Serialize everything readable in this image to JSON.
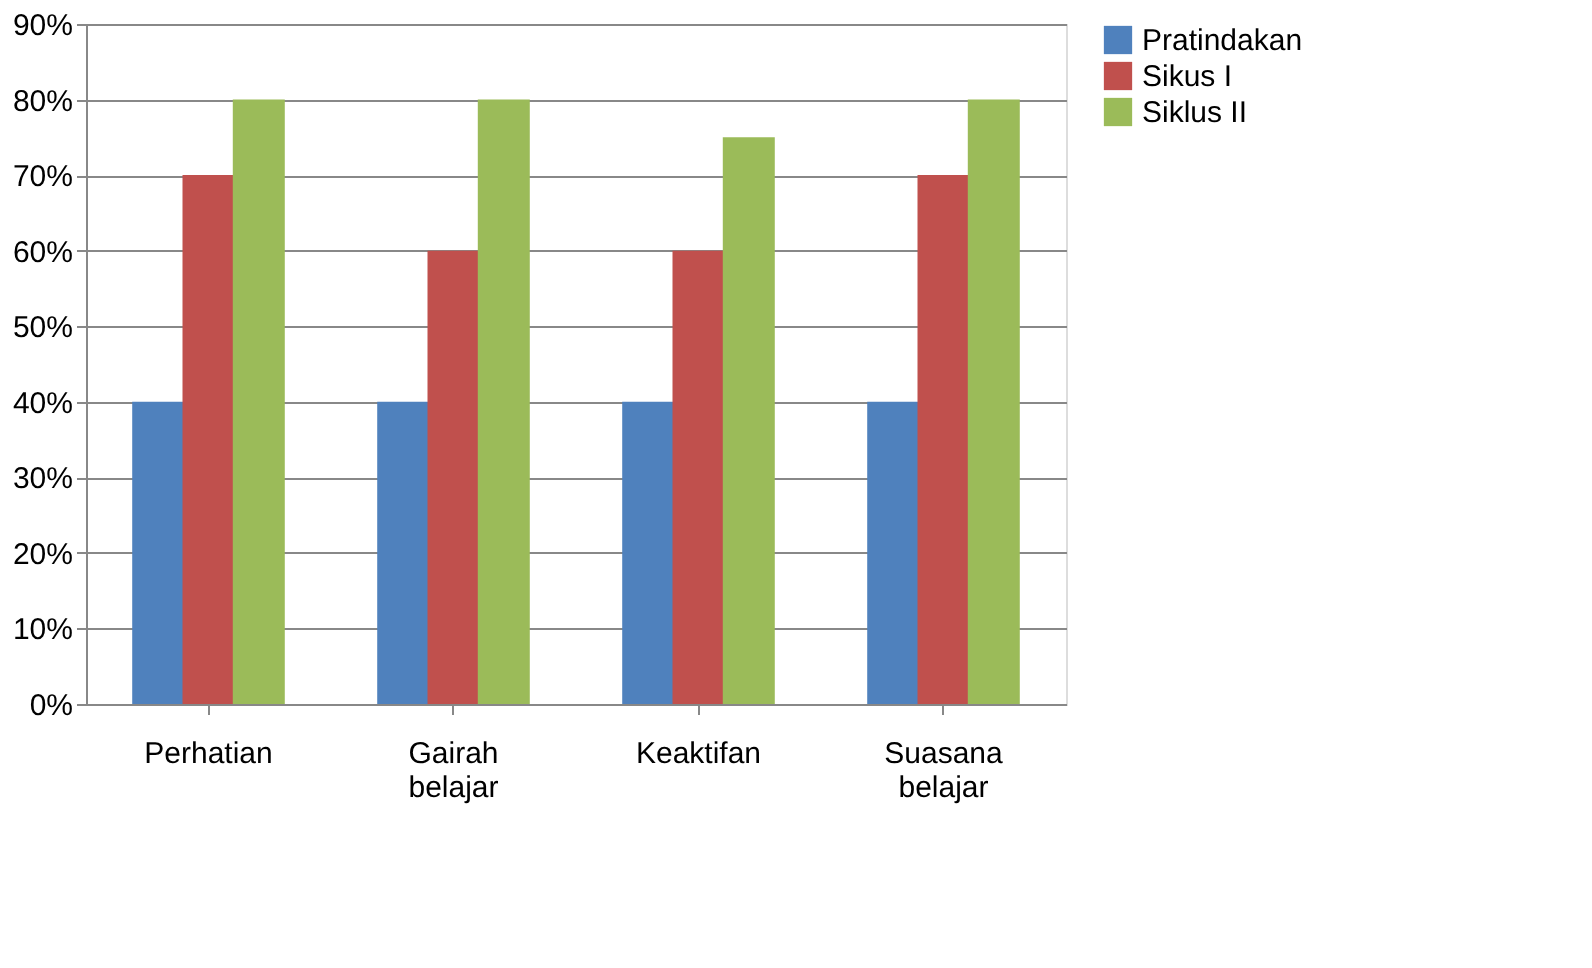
{
  "chart_data": {
    "type": "bar",
    "categories": [
      "Perhatian",
      "Gairah belajar",
      "Keaktifan",
      "Suasana belajar"
    ],
    "series": [
      {
        "name": "Pratindakan",
        "color": "#4f81bd",
        "values": [
          40,
          40,
          40,
          40
        ]
      },
      {
        "name": "Sikus I",
        "color": "#c0504d",
        "values": [
          70,
          60,
          60,
          70
        ]
      },
      {
        "name": "Siklus II",
        "color": "#9bbb59",
        "values": [
          80,
          80,
          75,
          80
        ]
      }
    ],
    "ylim": [
      0,
      90
    ],
    "yticks": [
      {
        "value": 0,
        "label": "0%"
      },
      {
        "value": 10,
        "label": "10%"
      },
      {
        "value": 20,
        "label": "20%"
      },
      {
        "value": 30,
        "label": "30%"
      },
      {
        "value": 40,
        "label": "40%"
      },
      {
        "value": 50,
        "label": "50%"
      },
      {
        "value": 60,
        "label": "60%"
      },
      {
        "value": 70,
        "label": "70%"
      },
      {
        "value": 80,
        "label": "80%"
      },
      {
        "value": 90,
        "label": "90%"
      }
    ],
    "grid": "y",
    "legend": "right"
  }
}
